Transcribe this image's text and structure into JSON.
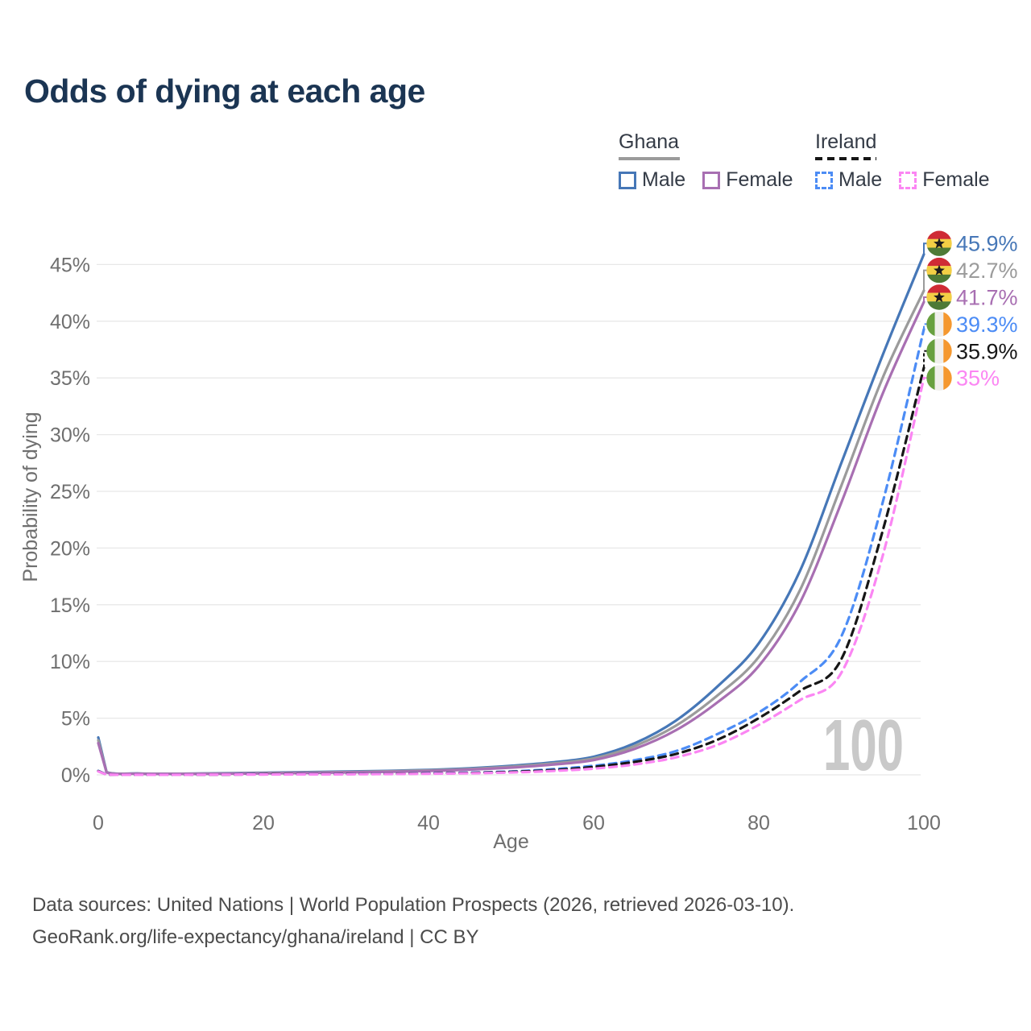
{
  "title": "Odds of dying at each age",
  "watermark": "100",
  "legend": {
    "groups": [
      {
        "name": "Ghana",
        "underline": {
          "color": "#9b9b9b",
          "dash": "solid"
        },
        "items": [
          {
            "label": "Male",
            "color": "#4677b7",
            "dash": "solid"
          },
          {
            "label": "Female",
            "color": "#a86fb2",
            "dash": "solid"
          }
        ]
      },
      {
        "name": "Ireland",
        "underline": {
          "color": "#161616",
          "dash": "dashed"
        },
        "items": [
          {
            "label": "Male",
            "color": "#4c8cf5",
            "dash": "dashed"
          },
          {
            "label": "Female",
            "color": "#fb86f3",
            "dash": "dashed"
          }
        ]
      }
    ]
  },
  "footer": {
    "line1": "Data sources: United Nations | World Population Prospects (2026, retrieved 2026-03-10).",
    "line2": "GeoRank.org/life-expectancy/ghana/ireland | CC BY"
  },
  "flags": {
    "ghana": {
      "stripes": [
        "#cf2b35",
        "#f3cf45",
        "#4e7a36"
      ],
      "star": "#1c1c1c"
    },
    "ireland": {
      "stripes": [
        "#68a03f",
        "#f0efec",
        "#f5982f"
      ]
    }
  },
  "chart_data": {
    "type": "line",
    "title": "Odds of dying at each age",
    "xlabel": "Age",
    "ylabel": "Probability of dying",
    "xlim": [
      0,
      100
    ],
    "ylim_percent": [
      0,
      47
    ],
    "grid": true,
    "legend_position": "top-right",
    "x_ticks": [
      0,
      20,
      40,
      60,
      80,
      100
    ],
    "y_ticks": [
      0,
      5,
      10,
      15,
      20,
      25,
      30,
      35,
      40,
      45
    ],
    "y_tick_labels": [
      "0%",
      "5%",
      "10%",
      "15%",
      "20%",
      "25%",
      "30%",
      "35%",
      "40%",
      "45%"
    ],
    "x": [
      0,
      1,
      5,
      10,
      15,
      20,
      25,
      30,
      35,
      40,
      45,
      50,
      55,
      60,
      65,
      70,
      75,
      80,
      85,
      90,
      95,
      100
    ],
    "series": [
      {
        "name": "Ghana Male",
        "country": "Ghana",
        "sex": "Male",
        "color": "#4677b7",
        "dash": "solid",
        "flag": "ghana",
        "end_label": "45.9%",
        "values_percent": [
          3.3,
          0.25,
          0.12,
          0.1,
          0.14,
          0.19,
          0.24,
          0.29,
          0.35,
          0.44,
          0.58,
          0.8,
          1.1,
          1.6,
          2.8,
          4.8,
          7.8,
          11.6,
          18,
          27.5,
          37,
          45.9
        ]
      },
      {
        "name": "Ghana Both sexes",
        "country": "Ghana",
        "sex": "Both",
        "color": "#9b9b9b",
        "dash": "solid",
        "flag": "ghana",
        "end_label": "42.7%",
        "values_percent": [
          3.05,
          0.23,
          0.11,
          0.09,
          0.12,
          0.16,
          0.2,
          0.25,
          0.31,
          0.39,
          0.52,
          0.72,
          1,
          1.45,
          2.55,
          4.35,
          7,
          10.4,
          16.3,
          25.5,
          35,
          42.7
        ]
      },
      {
        "name": "Ghana Female",
        "country": "Ghana",
        "sex": "Female",
        "color": "#a86fb2",
        "dash": "solid",
        "flag": "ghana",
        "end_label": "41.7%",
        "values_percent": [
          2.8,
          0.21,
          0.1,
          0.08,
          0.1,
          0.13,
          0.16,
          0.21,
          0.27,
          0.34,
          0.46,
          0.64,
          0.9,
          1.3,
          2.3,
          3.95,
          6.4,
          9.6,
          15.2,
          24,
          33.6,
          41.7
        ]
      },
      {
        "name": "Ireland Male",
        "country": "Ireland",
        "sex": "Male",
        "color": "#4c8cf5",
        "dash": "dashed",
        "flag": "ireland",
        "end_label": "39.3%",
        "values_percent": [
          0.35,
          0.03,
          0.01,
          0.01,
          0.03,
          0.06,
          0.07,
          0.08,
          0.1,
          0.14,
          0.2,
          0.3,
          0.5,
          0.8,
          1.3,
          2.1,
          3.6,
          5.5,
          8.2,
          12.2,
          24,
          39.3
        ]
      },
      {
        "name": "Ireland Both sexes",
        "country": "Ireland",
        "sex": "Both",
        "color": "#161616",
        "dash": "dashed",
        "flag": "ireland",
        "end_label": "35.9%",
        "values_percent": [
          0.33,
          0.03,
          0.01,
          0.01,
          0.02,
          0.05,
          0.06,
          0.07,
          0.09,
          0.12,
          0.17,
          0.26,
          0.42,
          0.7,
          1.15,
          1.85,
          3.1,
          5,
          7.4,
          10.2,
          21.5,
          35.9
        ]
      },
      {
        "name": "Ireland Female",
        "country": "Ireland",
        "sex": "Female",
        "color": "#fb86f3",
        "dash": "dashed",
        "flag": "ireland",
        "end_label": "35%",
        "values_percent": [
          0.3,
          0.025,
          0.01,
          0.01,
          0.02,
          0.03,
          0.04,
          0.05,
          0.07,
          0.1,
          0.14,
          0.21,
          0.34,
          0.55,
          0.92,
          1.55,
          2.65,
          4.4,
          6.6,
          9,
          19.3,
          35
        ]
      }
    ]
  }
}
